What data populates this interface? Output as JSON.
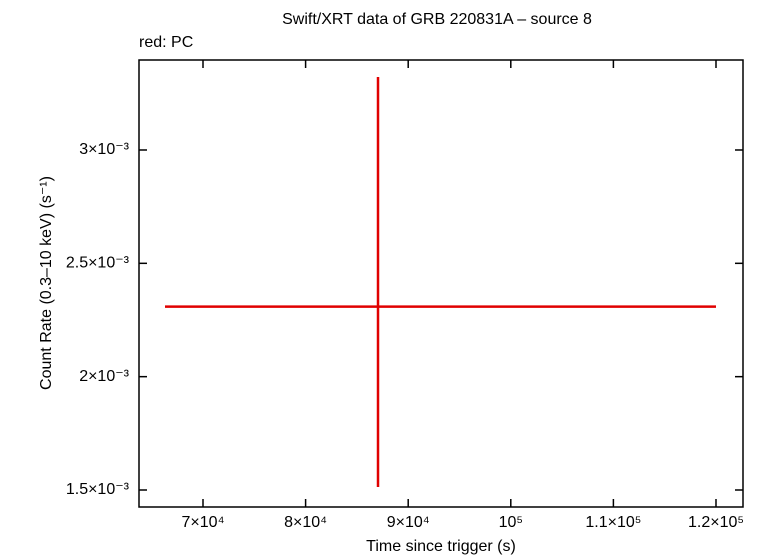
{
  "chart_data": {
    "type": "errorbar",
    "title": "Swift/XRT data of GRB 220831A – source 8",
    "subtitle": "red: PC",
    "x_label": "Time since trigger (s)",
    "y_label": "Count Rate (0.3–10 keV) (s⁻¹)",
    "xlim": [
      63762,
      122632
    ],
    "ylim": [
      0.001425,
      0.003397
    ],
    "xticks": [
      {
        "value": 70000,
        "label": "7×10⁴"
      },
      {
        "value": 80000,
        "label": "8×10⁴"
      },
      {
        "value": 90000,
        "label": "9×10⁴"
      },
      {
        "value": 100000,
        "label": "10⁵"
      },
      {
        "value": 110000,
        "label": "1.1×10⁵"
      },
      {
        "value": 120000,
        "label": "1.2×10⁵"
      }
    ],
    "yticks": [
      {
        "value": 0.0015,
        "label": "1.5×10⁻³"
      },
      {
        "value": 0.002,
        "label": "2×10⁻³"
      },
      {
        "value": 0.0025,
        "label": "2.5×10⁻³"
      },
      {
        "value": 0.003,
        "label": "3×10⁻³"
      }
    ],
    "series": [
      {
        "color": "#e00000",
        "x": [
          87057
        ],
        "values": [
          0.002309
        ],
        "xerr_minus": [
          20761
        ],
        "xerr_plus": [
          32943
        ],
        "yerr_minus": [
          0.000796
        ],
        "yerr_plus": [
          0.001013
        ]
      }
    ]
  }
}
